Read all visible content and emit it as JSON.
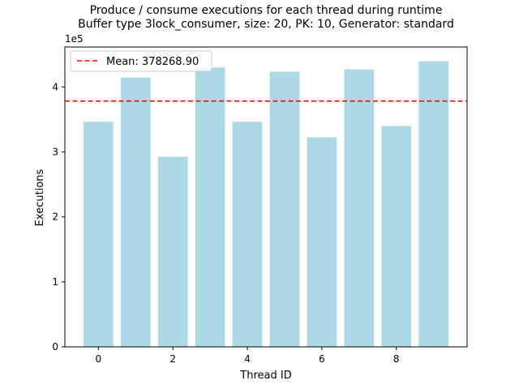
{
  "chart_data": {
    "type": "bar",
    "title": "Produce / consume executions for each thread during runtime",
    "subtitle": "Buffer type 3lock_consumer, size: 20, PK: 10, Generator: standard",
    "xlabel": "Thread ID",
    "ylabel": "Executions",
    "y_multiplier_label": "1e5",
    "categories": [
      0,
      1,
      2,
      3,
      4,
      5,
      6,
      7,
      8,
      9
    ],
    "values": [
      346500,
      414500,
      292500,
      430000,
      346500,
      423500,
      322500,
      427000,
      340000,
      439500
    ],
    "bar_color": "#add8e6",
    "mean": {
      "value": 378268.9,
      "label": "Mean: 378268.90",
      "color": "#ff0000",
      "style": "dashed"
    },
    "x_ticks": [
      "0",
      "2",
      "4",
      "6",
      "8"
    ],
    "x_tick_values": [
      0,
      2,
      4,
      6,
      8
    ],
    "y_ticks": [
      "0",
      "1",
      "2",
      "3",
      "4"
    ],
    "y_tick_values": [
      0,
      100000,
      200000,
      300000,
      400000
    ],
    "xlim": [
      -0.9,
      9.9
    ],
    "ylim": [
      0,
      461475
    ],
    "legend_position": "top-left",
    "grid": false
  }
}
